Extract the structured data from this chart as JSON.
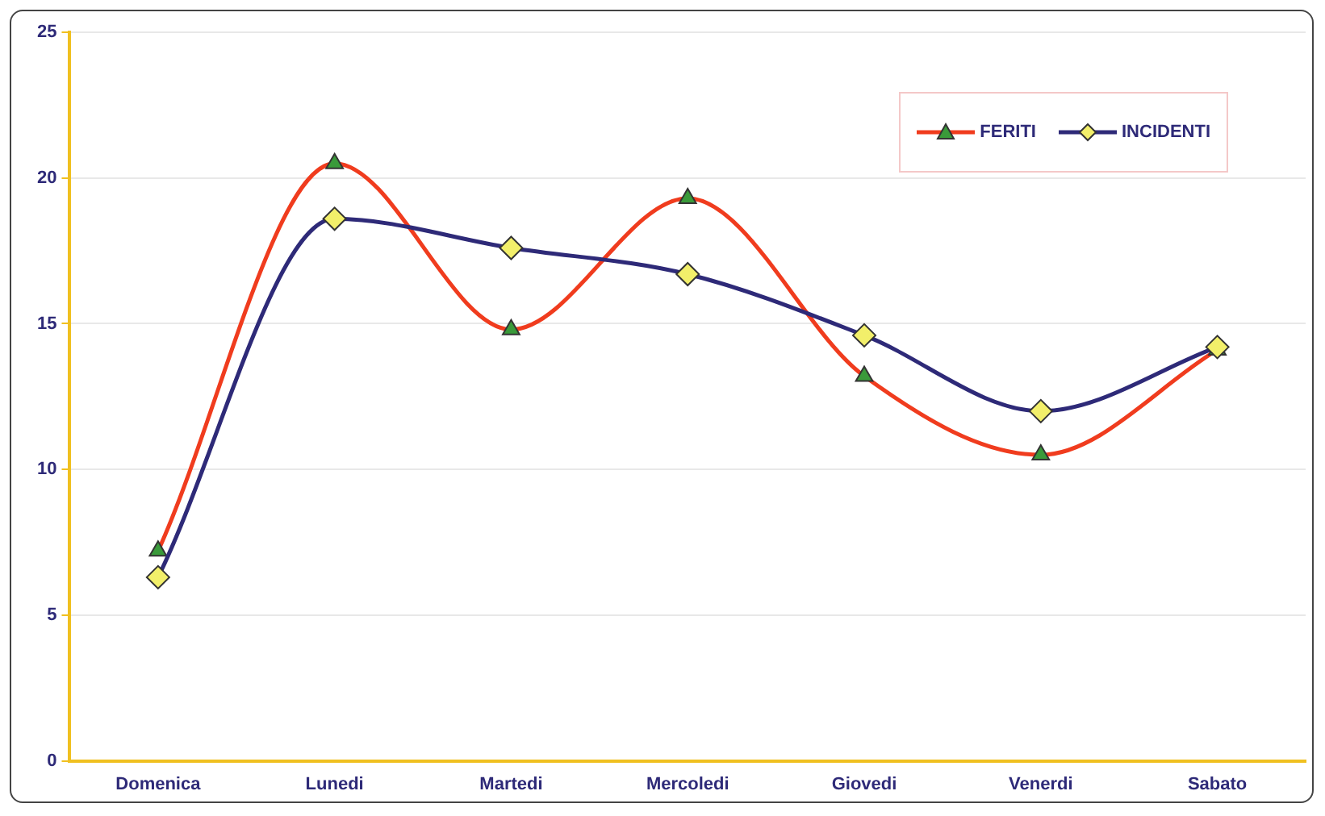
{
  "chart_data": {
    "type": "line",
    "categories": [
      "Domenica",
      "Lunedi",
      "Martedi",
      "Mercoledi",
      "Giovedi",
      "Venerdi",
      "Sabato"
    ],
    "series": [
      {
        "name": "FERITI",
        "color": "#f03c1e",
        "marker": "triangle",
        "values": [
          7.2,
          20.5,
          14.8,
          19.3,
          13.2,
          10.5,
          14.1
        ]
      },
      {
        "name": "INCIDENTI",
        "color": "#2e2a78",
        "marker": "diamond",
        "values": [
          6.3,
          18.6,
          17.6,
          16.7,
          14.6,
          12.0,
          14.2
        ]
      }
    ],
    "ylim": [
      0,
      25
    ],
    "yticks": [
      0,
      5,
      10,
      15,
      20,
      25
    ],
    "grid": "y",
    "legend": "top right",
    "line_style": "solid"
  }
}
